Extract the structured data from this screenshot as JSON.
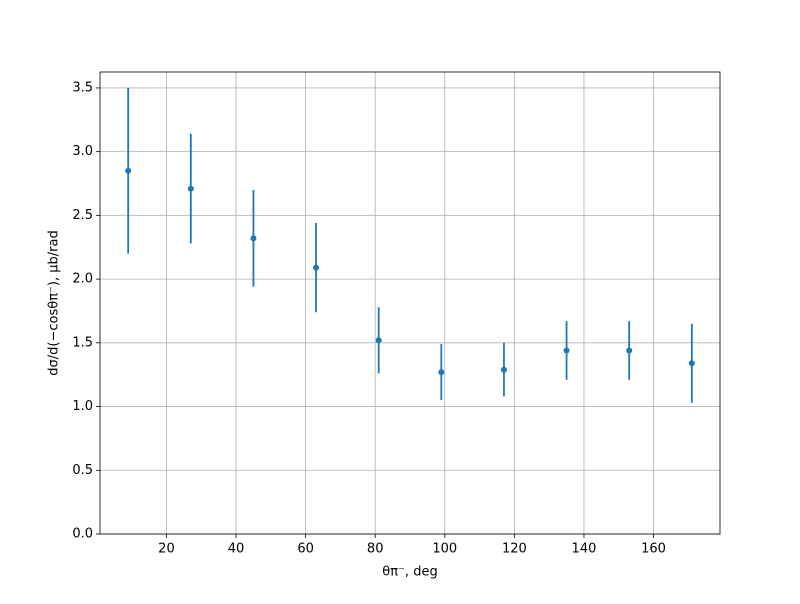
{
  "chart_data": {
    "type": "errorbar",
    "x_label": "θπ⁻, deg",
    "y_label": "dσ/d(−cosθπ⁻), μb/rad",
    "x": [
      9,
      27,
      45,
      63,
      81,
      99,
      117,
      135,
      153,
      171
    ],
    "series": [
      {
        "color": "#1f77b4",
        "values": [
          2.85,
          2.71,
          2.32,
          2.09,
          1.52,
          1.27,
          1.29,
          1.44,
          1.44,
          1.34
        ],
        "errors": [
          0.65,
          0.43,
          0.38,
          0.35,
          0.26,
          0.22,
          0.21,
          0.23,
          0.23,
          0.31
        ]
      }
    ],
    "xlim": [
      0.9,
      179.1
    ],
    "ylim": [
      0,
      3.625
    ],
    "xticks": [
      20,
      40,
      60,
      80,
      100,
      120,
      140,
      160
    ],
    "yticks": [
      {
        "value": 0,
        "label": "0.0"
      },
      0.5,
      {
        "value": 1,
        "label": "1.0"
      },
      1.5,
      {
        "value": 2,
        "label": "2.0"
      },
      2.5,
      {
        "value": 3,
        "label": "3.0"
      },
      3.5
    ],
    "grid": true
  }
}
